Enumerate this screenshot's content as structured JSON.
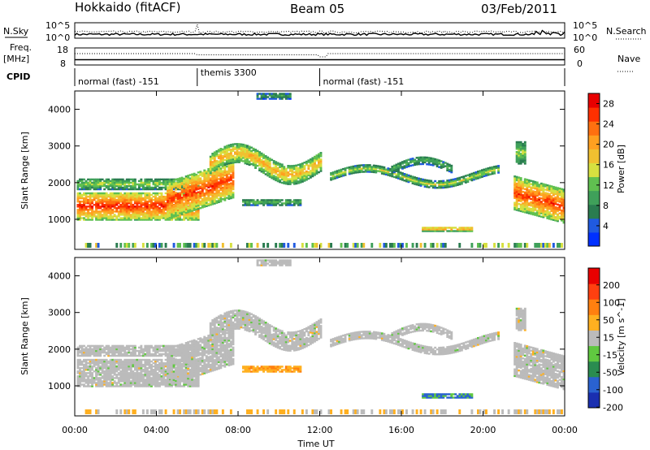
{
  "header": {
    "station": "Hokkaido (fitACF)",
    "beam": "Beam 05",
    "date": "03/Feb/2011"
  },
  "strips": {
    "nsky_label": "N.Sky",
    "nsky_ticks": [
      "10^5",
      "10^0"
    ],
    "nsearch_label": "N.Search",
    "nsearch_ticks": [
      "10^5",
      "10^0"
    ],
    "freq_label_1": "Freq.",
    "freq_label_2": "[MHz]",
    "freq_ticks": [
      "18",
      "8"
    ],
    "nave_label": "Nave",
    "nave_ticks": [
      "60",
      "0"
    ],
    "cpid_label": "CPID"
  },
  "cpid_segments": [
    {
      "label": "normal (fast) -151",
      "start_hour": 0,
      "end_hour": 6
    },
    {
      "label": "themis 3300",
      "start_hour": 6,
      "end_hour": 12
    },
    {
      "label": "normal (fast) -151",
      "start_hour": 12,
      "end_hour": 24
    }
  ],
  "chart_data": [
    {
      "type": "heatmap",
      "name": "power",
      "xlabel": "Time UT",
      "ylabel": "Slant Range [km]",
      "x_range_hours": [
        0,
        24
      ],
      "y_range_km": [
        180,
        4500
      ],
      "x_ticks": [
        "00:00",
        "04:00",
        "08:00",
        "12:00",
        "16:00",
        "20:00",
        "00:00"
      ],
      "y_ticks": [
        1000,
        2000,
        3000,
        4000
      ],
      "colorbar": {
        "label": "Power [dB]",
        "ticks": [
          4,
          8,
          12,
          16,
          20,
          24,
          28
        ],
        "range": [
          0,
          30
        ],
        "colors": [
          "#0030ff",
          "#205ae0",
          "#2a7c50",
          "#3fa05a",
          "#60c050",
          "#d6e040",
          "#f0c030",
          "#ffa020",
          "#ff7010",
          "#ff3000",
          "#e80000"
        ]
      }
    },
    {
      "type": "heatmap",
      "name": "velocity",
      "xlabel": "Time UT",
      "ylabel": "Slant Range [km]",
      "x_range_hours": [
        0,
        24
      ],
      "y_range_km": [
        180,
        4500
      ],
      "x_ticks": [
        "00:00",
        "04:00",
        "08:00",
        "12:00",
        "16:00",
        "20:00",
        "00:00"
      ],
      "y_ticks": [
        1000,
        2000,
        3000,
        4000
      ],
      "colorbar": {
        "label": "Velocity [m s^-1]",
        "ticks": [
          200,
          100,
          50,
          15,
          -15,
          -50,
          -100,
          -200
        ],
        "colors": [
          "#1a2fb0",
          "#2a62d0",
          "#2a8c50",
          "#60c840",
          "#bbbbbb",
          "#ffb020",
          "#ff8010",
          "#ff4010",
          "#e80000"
        ]
      }
    }
  ]
}
